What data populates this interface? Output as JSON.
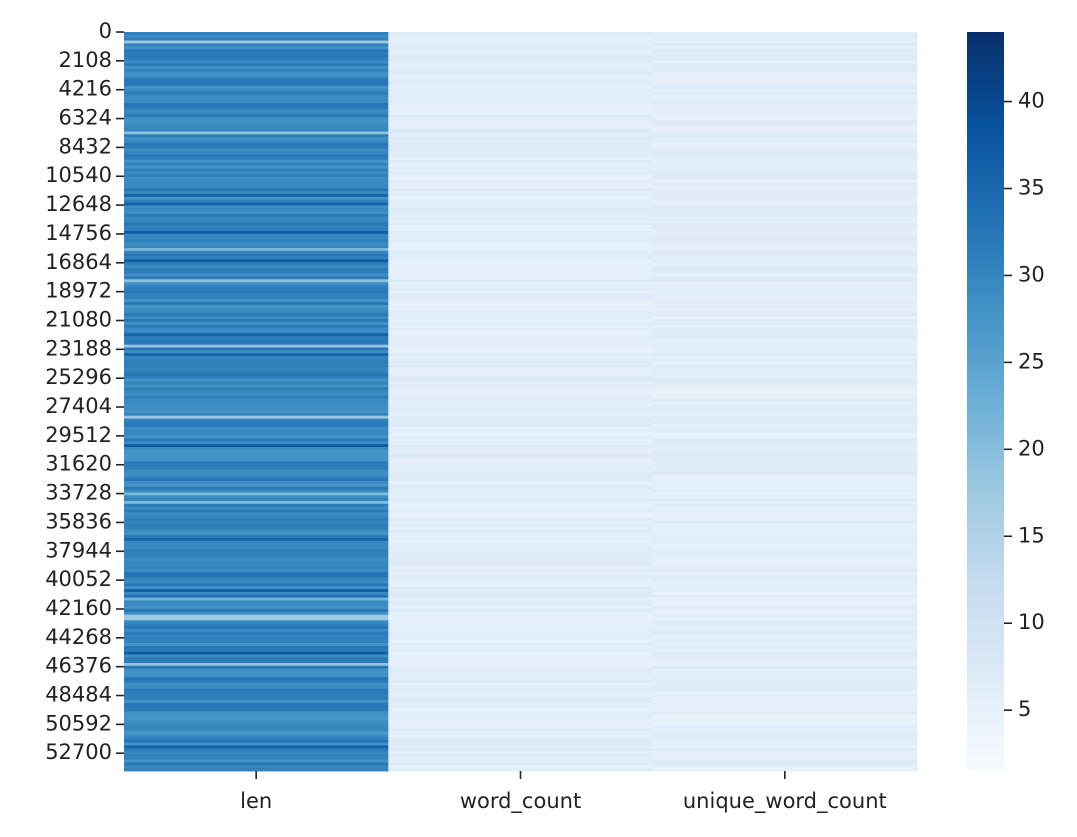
{
  "chart_data": {
    "type": "heatmap",
    "title": "",
    "xlabel": "",
    "ylabel": "",
    "columns": [
      "len",
      "word_count",
      "unique_word_count"
    ],
    "row_count": 54000,
    "y_ticks": [
      0,
      2108,
      4216,
      6324,
      8432,
      10540,
      12648,
      14756,
      16864,
      18972,
      21080,
      23188,
      25296,
      27404,
      29512,
      31620,
      33728,
      35836,
      37944,
      40052,
      42160,
      44268,
      46376,
      48484,
      50592,
      52700
    ],
    "y_tick_labels": [
      "0",
      "2108",
      "4216",
      "6324",
      "8432",
      "10540",
      "12648",
      "14756",
      "16864",
      "18972",
      "21080",
      "23188",
      "25296",
      "27404",
      "29512",
      "31620",
      "33728",
      "35836",
      "37944",
      "40052",
      "42160",
      "44268",
      "46376",
      "48484",
      "50592",
      "52700"
    ],
    "columns_typical_values": {
      "len": 30,
      "word_count": 6,
      "unique_word_count": 6
    },
    "colorbar": {
      "colormap": "Blues",
      "min": 1.5,
      "max": 44,
      "ticks": [
        5,
        10,
        15,
        20,
        25,
        30,
        35,
        40
      ],
      "tick_labels": [
        "5",
        "10",
        "15",
        "20",
        "25",
        "30",
        "35",
        "40"
      ]
    },
    "colors": {
      "low": "#f7fbff",
      "high": "#08306b"
    }
  }
}
